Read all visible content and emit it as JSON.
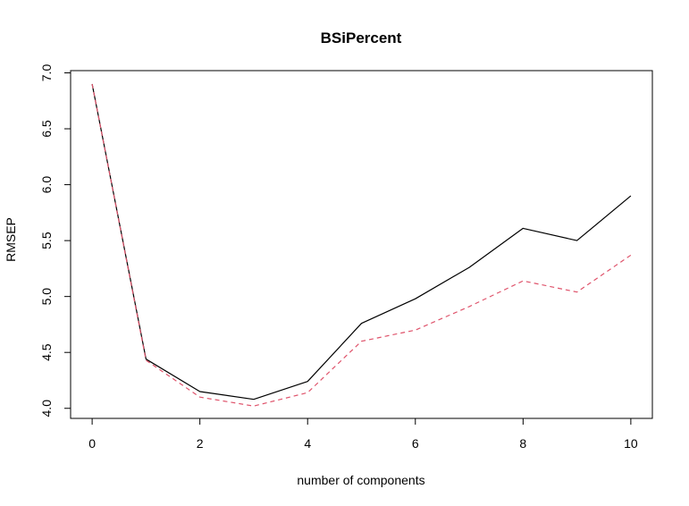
{
  "chart_data": {
    "type": "line",
    "title": "BSiPercent",
    "xlabel": "number of components",
    "ylabel": "RMSEP",
    "xlim": [
      -0.4,
      10.4
    ],
    "ylim": [
      3.91,
      7.02
    ],
    "x_ticks": [
      0,
      2,
      4,
      6,
      8,
      10
    ],
    "y_ticks": [
      4.0,
      4.5,
      5.0,
      5.5,
      6.0,
      6.5,
      7.0
    ],
    "x_tick_labels": [
      "0",
      "2",
      "4",
      "6",
      "8",
      "10"
    ],
    "y_tick_labels": [
      "4.0",
      "4.5",
      "5.0",
      "5.5",
      "6.0",
      "6.5",
      "7.0"
    ],
    "grid": false,
    "x": [
      0,
      1,
      2,
      3,
      4,
      5,
      6,
      7,
      8,
      9,
      10
    ],
    "series": [
      {
        "values": [
          6.9,
          4.44,
          4.15,
          4.08,
          4.24,
          4.76,
          4.98,
          5.26,
          5.61,
          5.5,
          5.9
        ],
        "color": "#000000",
        "line_style": "solid"
      },
      {
        "values": [
          6.9,
          4.43,
          4.1,
          4.02,
          4.14,
          4.6,
          4.7,
          4.91,
          5.14,
          5.04,
          5.37
        ],
        "color": "#DF536B",
        "line_style": "dashed"
      }
    ]
  }
}
